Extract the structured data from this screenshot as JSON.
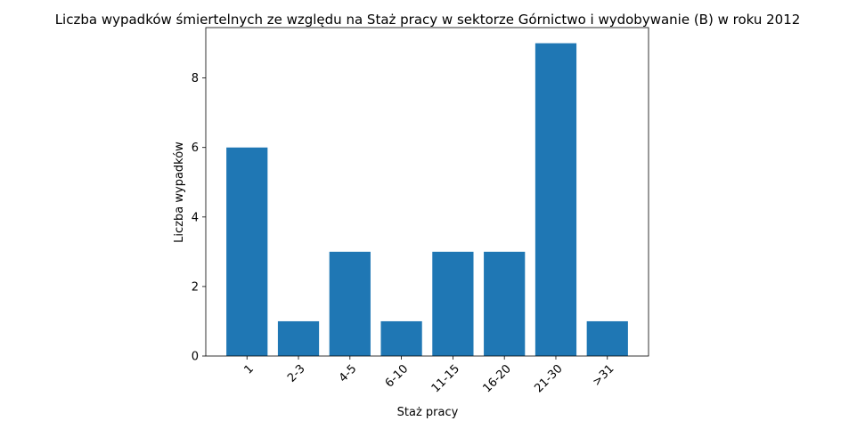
{
  "chart_data": {
    "type": "bar",
    "title": "Liczba wypadków śmiertelnych ze względu na Staż pracy w sektorze Górnictwo i wydobywanie (B)   w roku 2012",
    "xlabel": "Staż pracy",
    "ylabel": "Liczba wypadków",
    "categories": [
      "1",
      "2-3",
      "4-5",
      "6-10",
      "11-15",
      "16-20",
      "21-30",
      ">31"
    ],
    "values": [
      6,
      1,
      3,
      1,
      3,
      3,
      9,
      1
    ],
    "ylim": [
      0,
      9.45
    ],
    "yticks": [
      0,
      2,
      4,
      6,
      8
    ],
    "grid": false,
    "bar_color": "#1f77b4",
    "xtick_rotation": 45
  }
}
